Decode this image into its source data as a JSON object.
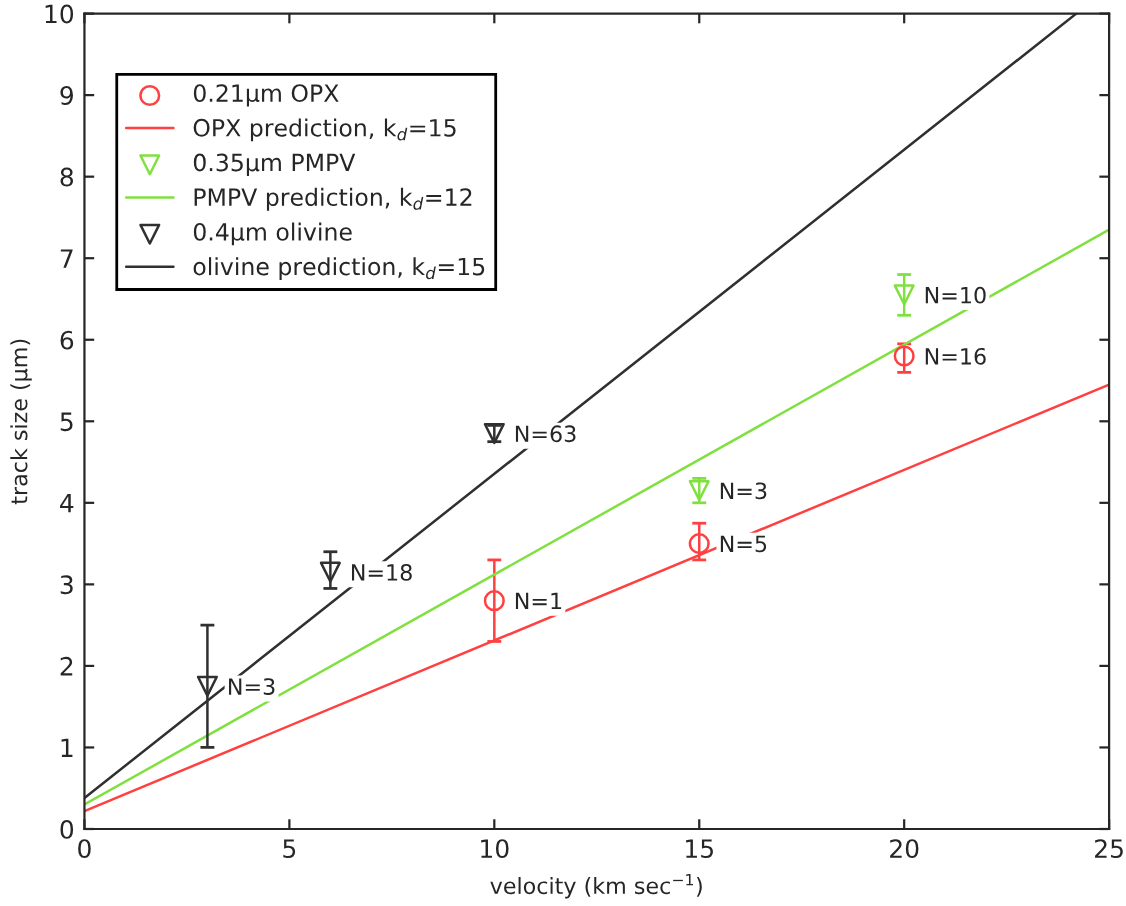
{
  "chart_data": {
    "type": "scatter",
    "xlabel": "velocity (km sec$^{−1}$)",
    "ylabel": "track size (μm)",
    "xlim": [
      0,
      25
    ],
    "ylim": [
      0,
      10
    ],
    "xticks": [
      0,
      5,
      10,
      15,
      20,
      25
    ],
    "yticks": [
      0,
      1,
      2,
      3,
      4,
      5,
      6,
      7,
      8,
      9,
      10
    ],
    "grid": false,
    "legend": "top left",
    "series": [
      {
        "name": "0.21μm OPX",
        "marker": "circle",
        "color": "#ff4040",
        "x": [
          10,
          15,
          20
        ],
        "values": [
          2.8,
          3.5,
          5.8
        ],
        "errors": [
          [
            2.3,
            3.3
          ],
          [
            3.3,
            3.75
          ],
          [
            5.6,
            5.95
          ]
        ]
      },
      {
        "name": "OPX prediction, k$_{d}$=15",
        "type": "line",
        "line_style": "solid",
        "color": "#ff4040",
        "x": [
          0,
          25
        ],
        "values": [
          0.22,
          5.45
        ]
      },
      {
        "name": "0.35μm PMPV",
        "marker": "triangle",
        "color": "#80e040",
        "x": [
          15,
          20
        ],
        "values": [
          4.15,
          6.55
        ],
        "errors": [
          [
            4.0,
            4.3
          ],
          [
            6.3,
            6.8
          ]
        ]
      },
      {
        "name": "PMPV prediction, k$_{d}$=12",
        "type": "line",
        "line_style": "solid",
        "color": "#80e040",
        "x": [
          0,
          25
        ],
        "values": [
          0.3,
          7.35
        ]
      },
      {
        "name": "0.4μm olivine",
        "marker": "triangle",
        "color": "#303030",
        "x": [
          3,
          6,
          10
        ],
        "values": [
          1.75,
          3.15,
          4.85
        ],
        "errors": [
          [
            1.0,
            2.5
          ],
          [
            2.95,
            3.4
          ],
          [
            4.75,
            4.95
          ]
        ]
      },
      {
        "name": "olivine prediction, k$_{d}$=15",
        "type": "line",
        "line_style": "solid",
        "color": "#303030",
        "x": [
          0,
          24.2
        ],
        "values": [
          0.38,
          10
        ]
      }
    ],
    "annotations": [
      {
        "text": "N=1",
        "x": 10,
        "y": 2.8
      },
      {
        "text": "N=5",
        "x": 15,
        "y": 3.5
      },
      {
        "text": "N=16",
        "x": 20,
        "y": 5.8
      },
      {
        "text": "N=3",
        "x": 15,
        "y": 4.15
      },
      {
        "text": "N=10",
        "x": 20,
        "y": 6.55
      },
      {
        "text": "N=3",
        "x": 3,
        "y": 1.75
      },
      {
        "text": "N=18",
        "x": 6,
        "y": 3.15
      },
      {
        "text": "N=63",
        "x": 10,
        "y": 4.85
      }
    ]
  }
}
